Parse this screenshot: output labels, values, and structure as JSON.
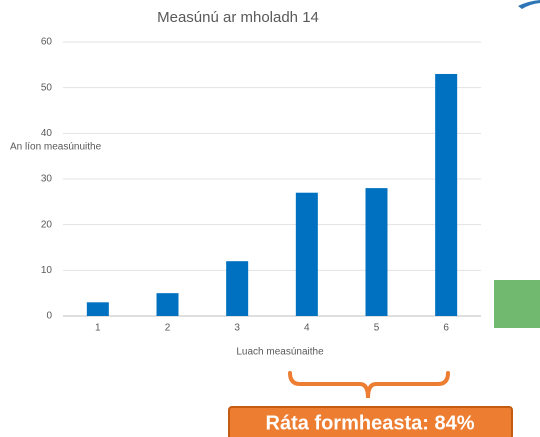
{
  "chart_data": {
    "type": "bar",
    "title": "Measúnú ar mholadh 14",
    "categories": [
      "1",
      "2",
      "3",
      "4",
      "5",
      "6"
    ],
    "values": [
      3,
      5,
      12,
      27,
      28,
      53
    ],
    "color": "#0070c0",
    "ylim": [
      0,
      60
    ],
    "yticks": [
      0,
      10,
      20,
      30,
      40,
      50,
      60
    ],
    "grid": true,
    "x_label": "Luach measúnaithe",
    "y_label": "An líon measúnuithe",
    "annotation": "Ráta formheasta: 84%"
  }
}
